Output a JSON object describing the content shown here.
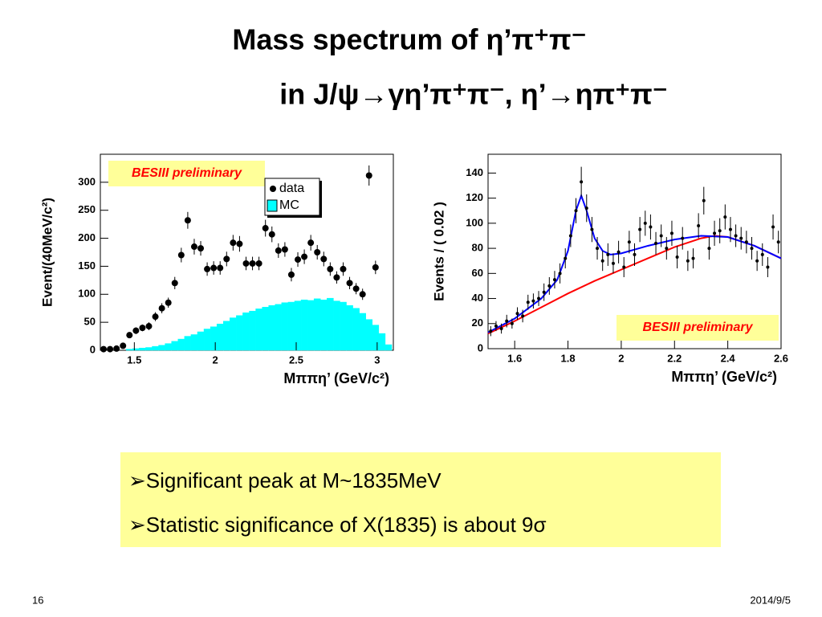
{
  "title": {
    "line1": "Mass spectrum of η’π⁺π⁻",
    "line2": "in J/ψ→γη’π⁺π⁻, η’→ηπ⁺π⁻"
  },
  "chart_data": [
    {
      "type": "scatter",
      "xlabel": "Mππη’ (GeV/c²)",
      "ylabel": "Event/(40MeV/c²)",
      "annotation": "BESIII preliminary",
      "xlim": [
        1.29,
        3.1
      ],
      "ylim": [
        0,
        350
      ],
      "xticks": [
        1.5,
        2,
        2.5,
        3
      ],
      "yticks": [
        0,
        50,
        100,
        150,
        200,
        250,
        300
      ],
      "series": [
        {
          "name": "data",
          "color": "#000000",
          "x": [
            1.31,
            1.35,
            1.39,
            1.43,
            1.47,
            1.51,
            1.55,
            1.59,
            1.63,
            1.67,
            1.71,
            1.75,
            1.79,
            1.83,
            1.87,
            1.91,
            1.95,
            1.99,
            2.03,
            2.07,
            2.11,
            2.15,
            2.19,
            2.23,
            2.27,
            2.31,
            2.35,
            2.39,
            2.43,
            2.47,
            2.51,
            2.55,
            2.59,
            2.63,
            2.67,
            2.71,
            2.75,
            2.79,
            2.83,
            2.87,
            2.91,
            2.95,
            2.99
          ],
          "values": [
            2,
            2,
            3,
            8,
            27,
            35,
            40,
            43,
            60,
            75,
            85,
            120,
            170,
            232,
            185,
            182,
            145,
            147,
            147,
            163,
            192,
            190,
            155,
            155,
            155,
            218,
            207,
            178,
            180,
            135,
            162,
            167,
            192,
            175,
            163,
            145,
            130,
            145,
            120,
            110,
            100,
            312,
            148
          ],
          "errors": [
            1,
            1,
            2,
            3,
            5,
            6,
            6,
            7,
            8,
            9,
            9,
            11,
            13,
            15,
            14,
            13,
            12,
            12,
            12,
            13,
            14,
            14,
            12,
            12,
            12,
            15,
            14,
            13,
            13,
            12,
            13,
            13,
            14,
            13,
            13,
            12,
            11,
            12,
            11,
            10,
            10,
            18,
            12
          ]
        }
      ],
      "histogram": {
        "name": "MC",
        "color": "#00ffff",
        "bins": [
          1.29,
          1.33,
          1.37,
          1.41,
          1.45,
          1.49,
          1.53,
          1.57,
          1.61,
          1.65,
          1.69,
          1.73,
          1.77,
          1.81,
          1.85,
          1.89,
          1.93,
          1.97,
          2.01,
          2.05,
          2.09,
          2.13,
          2.17,
          2.21,
          2.25,
          2.29,
          2.33,
          2.37,
          2.41,
          2.45,
          2.49,
          2.53,
          2.57,
          2.61,
          2.65,
          2.69,
          2.73,
          2.77,
          2.81,
          2.85,
          2.89,
          2.93,
          2.97,
          3.01,
          3.05,
          3.09
        ],
        "counts": [
          0,
          0,
          0,
          0,
          2,
          3,
          4,
          5,
          7,
          9,
          12,
          16,
          20,
          25,
          28,
          33,
          38,
          42,
          47,
          52,
          58,
          62,
          67,
          70,
          74,
          77,
          80,
          82,
          85,
          86,
          88,
          90,
          89,
          92,
          90,
          93,
          88,
          86,
          80,
          75,
          66,
          55,
          45,
          30,
          10
        ]
      }
    },
    {
      "type": "scatter",
      "xlabel": "Mππη’ (GeV/c²)",
      "ylabel": "Events / ( 0.02 )",
      "annotation": "BESIII preliminary",
      "xlim": [
        1.5,
        2.6
      ],
      "ylim": [
        0,
        155
      ],
      "xticks": [
        1.6,
        1.8,
        2,
        2.2,
        2.4,
        2.6
      ],
      "yticks": [
        0,
        20,
        40,
        60,
        80,
        100,
        120,
        140
      ],
      "series": [
        {
          "color": "#000000",
          "x": [
            1.51,
            1.53,
            1.55,
            1.57,
            1.59,
            1.61,
            1.63,
            1.65,
            1.67,
            1.69,
            1.71,
            1.73,
            1.75,
            1.77,
            1.79,
            1.81,
            1.83,
            1.85,
            1.87,
            1.89,
            1.91,
            1.93,
            1.95,
            1.97,
            1.99,
            2.01,
            2.03,
            2.05,
            2.07,
            2.09,
            2.11,
            2.13,
            2.15,
            2.17,
            2.19,
            2.21,
            2.23,
            2.25,
            2.27,
            2.29,
            2.31,
            2.33,
            2.35,
            2.37,
            2.39,
            2.41,
            2.43,
            2.45,
            2.47,
            2.49,
            2.51,
            2.53,
            2.55,
            2.57,
            2.59
          ],
          "values": [
            14,
            18,
            16,
            22,
            20,
            28,
            26,
            37,
            38,
            40,
            45,
            50,
            55,
            60,
            72,
            90,
            110,
            133,
            112,
            95,
            80,
            70,
            75,
            68,
            77,
            65,
            85,
            75,
            95,
            100,
            97,
            84,
            90,
            80,
            92,
            73,
            88,
            70,
            72,
            98,
            118,
            80,
            92,
            94,
            105,
            95,
            90,
            88,
            85,
            80,
            70,
            75,
            65,
            97,
            85
          ],
          "errors": [
            4,
            4,
            4,
            5,
            4,
            5,
            5,
            6,
            6,
            6,
            7,
            7,
            7,
            8,
            8,
            9,
            10,
            12,
            11,
            10,
            9,
            8,
            9,
            8,
            9,
            8,
            9,
            9,
            10,
            10,
            10,
            9,
            9,
            9,
            10,
            9,
            9,
            8,
            8,
            10,
            11,
            9,
            10,
            10,
            10,
            10,
            9,
            9,
            9,
            9,
            8,
            9,
            8,
            10,
            9
          ]
        }
      ],
      "fits": [
        {
          "color": "#ff0000",
          "x": [
            1.5,
            1.6,
            1.7,
            1.8,
            1.9,
            2.0,
            2.1,
            2.2,
            2.3,
            2.35,
            2.4,
            2.5,
            2.6
          ],
          "values": [
            12,
            22,
            33,
            44,
            54,
            63,
            72,
            81,
            88,
            90,
            89,
            82,
            72
          ]
        },
        {
          "color": "#0000ff",
          "x": [
            1.5,
            1.6,
            1.7,
            1.76,
            1.8,
            1.83,
            1.85,
            1.87,
            1.9,
            1.93,
            1.96,
            2.0,
            2.1,
            2.2,
            2.3,
            2.4,
            2.5,
            2.6
          ],
          "values": [
            13,
            24,
            40,
            55,
            78,
            110,
            122,
            110,
            88,
            78,
            75,
            76,
            82,
            87,
            90,
            89,
            82,
            72
          ]
        }
      ]
    }
  ],
  "bullets": [
    "Significant peak at M~1835MeV",
    "Statistic significance of X(1835) is about 9σ"
  ],
  "footer": {
    "page": "16",
    "date": "2014/9/5"
  }
}
